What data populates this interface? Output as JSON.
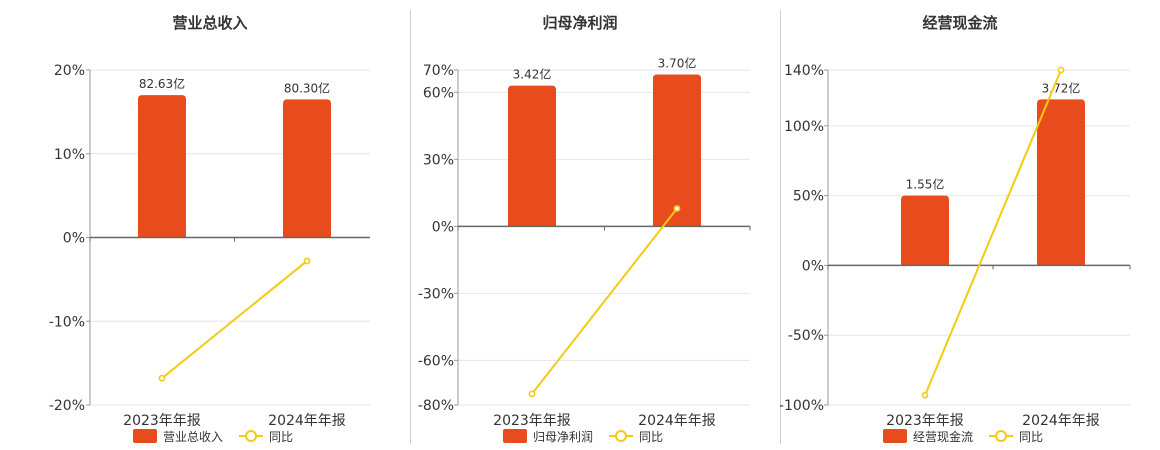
{
  "colors": {
    "bar": "#e84c1c",
    "line": "#f2cb12",
    "zero_axis": "#666666",
    "grid": "#e6e6e6",
    "axis": "#999999",
    "text": "#333333",
    "divider": "#cfcfcf"
  },
  "chart_data": [
    {
      "type": "bar",
      "title": "营业总收入",
      "categories": [
        "2023年年报",
        "2024年年报"
      ],
      "ylim": [
        -20,
        20
      ],
      "yticks": [
        "20%",
        "10%",
        "0%",
        "-10%",
        "-20%"
      ],
      "ytick_values": [
        20,
        10,
        0,
        -10,
        -20
      ],
      "series": [
        {
          "name": "营业总收入",
          "kind": "bar",
          "values": [
            17.0,
            16.5
          ],
          "labels": [
            "82.63亿",
            "80.30亿"
          ]
        },
        {
          "name": "同比",
          "kind": "line",
          "values": [
            -16.8,
            -2.8
          ]
        }
      ],
      "grid": true,
      "legend": "bottom"
    },
    {
      "type": "bar",
      "title": "归母净利润",
      "categories": [
        "2023年年报",
        "2024年年报"
      ],
      "ylim": [
        -80,
        70
      ],
      "yticks": [
        "70%",
        "60%",
        "30%",
        "0%",
        "-30%",
        "-60%",
        "-80%"
      ],
      "ytick_values": [
        70,
        60,
        30,
        0,
        -30,
        -60,
        -80
      ],
      "series": [
        {
          "name": "归母净利润",
          "kind": "bar",
          "values": [
            63,
            68
          ],
          "labels": [
            "3.42亿",
            "3.70亿"
          ]
        },
        {
          "name": "同比",
          "kind": "line",
          "values": [
            -75,
            8
          ]
        }
      ],
      "grid": true,
      "legend": "bottom"
    },
    {
      "type": "bar",
      "title": "经营现金流",
      "categories": [
        "2023年年报",
        "2024年年报"
      ],
      "ylim": [
        -100,
        140
      ],
      "yticks": [
        "140%",
        "100%",
        "50%",
        "0%",
        "-50%",
        "-100%"
      ],
      "ytick_values": [
        140,
        100,
        50,
        0,
        -50,
        -100
      ],
      "series": [
        {
          "name": "经营现金流",
          "kind": "bar",
          "values": [
            50,
            119
          ],
          "labels": [
            "1.55亿",
            "3.72亿"
          ]
        },
        {
          "name": "同比",
          "kind": "line",
          "values": [
            -93,
            140
          ]
        }
      ],
      "grid": true,
      "legend": "bottom"
    }
  ]
}
